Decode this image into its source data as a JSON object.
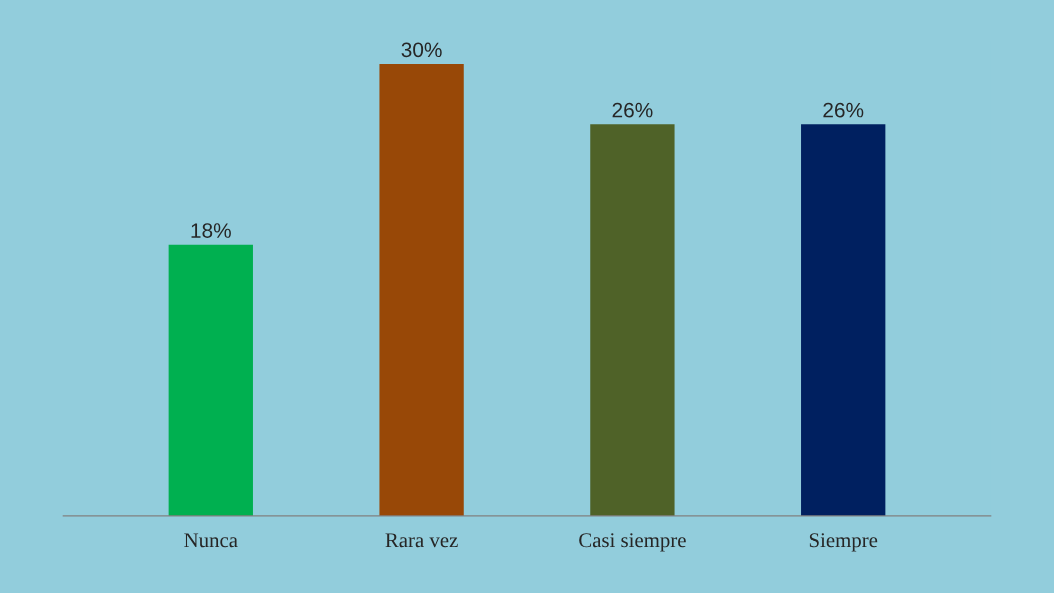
{
  "chart_data": {
    "type": "bar",
    "categories": [
      "Nunca",
      "Rara vez",
      "Casi siempre",
      "Siempre"
    ],
    "values": [
      18,
      30,
      26,
      26
    ],
    "colors": [
      "#00b050",
      "#984807",
      "#4f6228",
      "#002060"
    ],
    "value_labels": [
      "18%",
      "30%",
      "26%",
      "26%"
    ],
    "grid": false,
    "legend": false
  }
}
